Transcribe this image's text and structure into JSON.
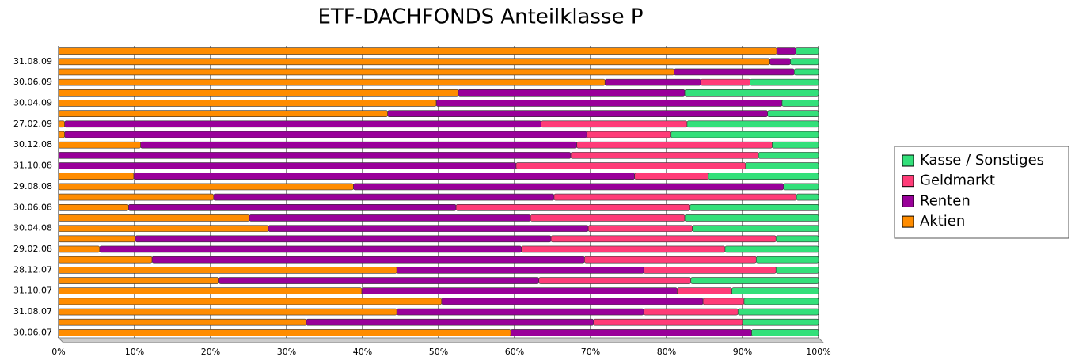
{
  "chart_data": {
    "type": "stacked-barh",
    "title": "ETF-DACHFONDS Anteilklasse P",
    "categories": [
      "30.06.07",
      null,
      "31.08.07",
      null,
      "31.10.07",
      null,
      "28.12.07",
      null,
      "29.02.08",
      null,
      "30.04.08",
      null,
      "30.06.08",
      null,
      "29.08.08",
      null,
      "31.10.08",
      null,
      "30.12.08",
      null,
      "27.02.09",
      null,
      "30.04.09",
      null,
      "30.06.09",
      null,
      "31.08.09",
      null
    ],
    "series": [
      {
        "name": "Aktien",
        "color": "#ff8c00",
        "values": [
          59.5,
          32.6,
          44.5,
          50.4,
          39.9,
          21.1,
          44.5,
          12.3,
          5.4,
          10.1,
          27.6,
          25.1,
          9.2,
          20.4,
          38.8,
          9.9,
          0,
          0,
          10.8,
          0.8,
          0.8,
          43.3,
          49.7,
          52.6,
          71.9,
          81,
          93.6,
          94.5
        ]
      },
      {
        "name": "Renten",
        "color": "#990099",
        "values": [
          31.7,
          37.8,
          32.5,
          34.4,
          41.5,
          42.1,
          32.5,
          56.9,
          55.5,
          54.7,
          42.1,
          37,
          43.1,
          44.8,
          56.6,
          65.9,
          60.2,
          67.4,
          57.4,
          68.7,
          62.7,
          50,
          45.5,
          29.8,
          12.6,
          15.8,
          2.7,
          2.5
        ]
      },
      {
        "name": "Geldmarkt",
        "color": "#ff3c78",
        "values": [
          0,
          19.6,
          12.4,
          5.4,
          7.2,
          20,
          17.4,
          22.6,
          26.8,
          29.6,
          13.7,
          20.3,
          30.8,
          31.9,
          0,
          9.7,
          30.2,
          24.7,
          25.7,
          11.1,
          19.2,
          0,
          0,
          0,
          6.5,
          0,
          0,
          0
        ]
      },
      {
        "name": "Kasse / Sonstiges",
        "color": "#33e07a",
        "values": [
          8.8,
          10,
          10.6,
          9.8,
          11.4,
          16.8,
          5.6,
          8.2,
          12.3,
          5.6,
          16.6,
          17.6,
          16.9,
          2.9,
          4.6,
          14.5,
          9.6,
          7.9,
          6.1,
          19.4,
          17.3,
          6.7,
          4.8,
          17.6,
          9,
          3.2,
          3.7,
          3
        ]
      }
    ],
    "xlim": [
      0,
      100
    ],
    "xticks": [
      {
        "value": 0,
        "label": "0%"
      },
      {
        "value": 10,
        "label": "10%"
      },
      {
        "value": 20,
        "label": "20%"
      },
      {
        "value": 30,
        "label": "30%"
      },
      {
        "value": 40,
        "label": "40%"
      },
      {
        "value": 50,
        "label": "50%"
      },
      {
        "value": 60,
        "label": "60%"
      },
      {
        "value": 70,
        "label": "70%"
      },
      {
        "value": 80,
        "label": "80%"
      },
      {
        "value": 90,
        "label": "90%"
      },
      {
        "value": 100,
        "label": "100%"
      }
    ],
    "grid": true,
    "legend": "right"
  }
}
